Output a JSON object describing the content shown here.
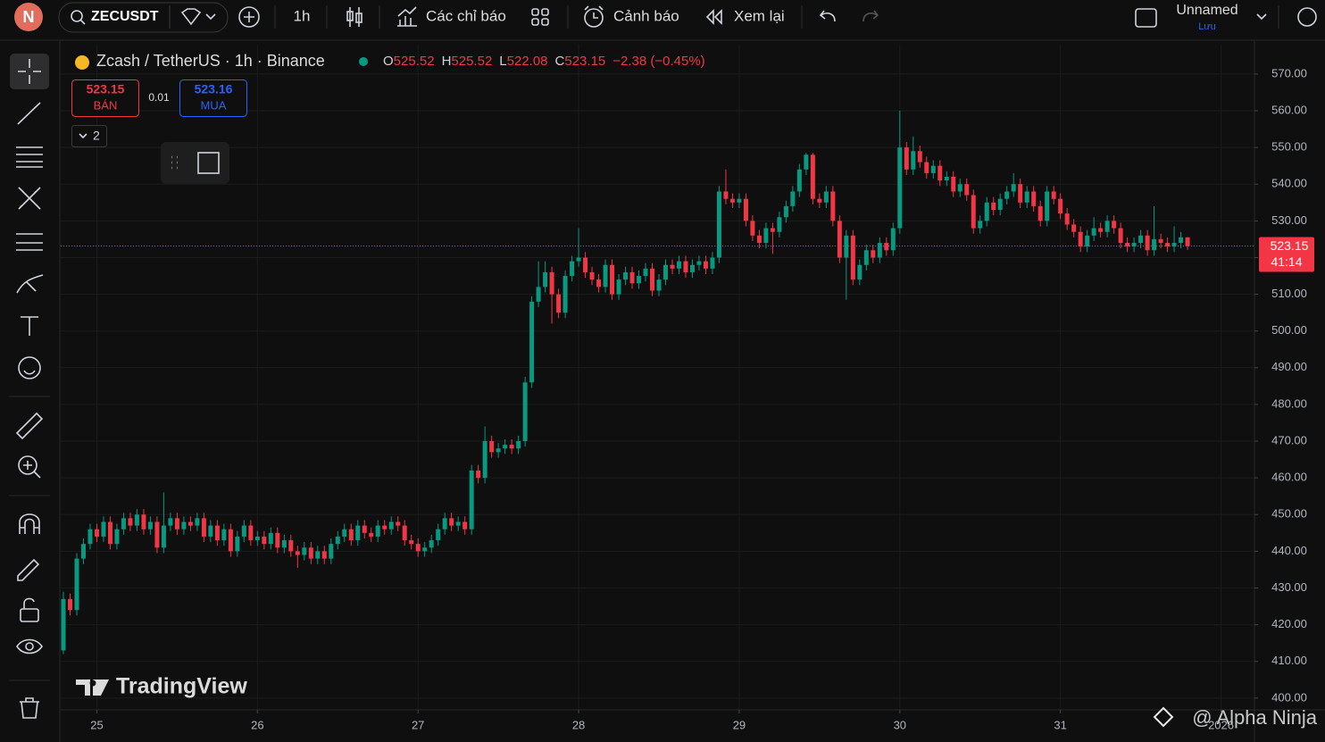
{
  "ui": {
    "avatar": "N",
    "symbol": "ZECUSDT",
    "interval": "1h",
    "indicators": "Các chỉ báo",
    "alerts": "Cảnh báo",
    "replay": "Xem lại",
    "layout_name": "Unnamed",
    "save": "Lưu",
    "sell_label": "BÁN",
    "spread": "0.01",
    "buy_price": "523.16",
    "buy_label": "MUA",
    "collapse_count": "2",
    "countdown": "41:14",
    "watermark": "TradingView",
    "credit": "@ Alpha Ninja"
  },
  "chart_data": {
    "type": "candlestick",
    "title": "Zcash / TetherUS · 1h · Binance",
    "change": "−2.38 (−0.45%)",
    "ohlc_labels": [
      "O",
      "H",
      "L",
      "C"
    ],
    "up_color": "#089981",
    "down_color": "#f23645",
    "grid": true,
    "ylim": [
      396.8,
      578
    ],
    "xlim": [
      -0.4,
      178
    ],
    "yticks": [
      {
        "value": 400,
        "label": "400.00"
      },
      {
        "value": 410,
        "label": "410.00"
      },
      {
        "value": 420,
        "label": "420.00"
      },
      {
        "value": 430,
        "label": "430.00"
      },
      {
        "value": 440,
        "label": "440.00"
      },
      {
        "value": 450,
        "label": "450.00"
      },
      {
        "value": 460,
        "label": "460.00"
      },
      {
        "value": 470,
        "label": "470.00"
      },
      {
        "value": 480,
        "label": "480.00"
      },
      {
        "value": 490,
        "label": "490.00"
      },
      {
        "value": 500,
        "label": "500.00"
      },
      {
        "value": 510,
        "label": "510.00"
      },
      {
        "value": 520,
        "label": "520.00"
      },
      {
        "value": 530,
        "label": "530.00"
      },
      {
        "value": 540,
        "label": "540.00"
      },
      {
        "value": 550,
        "label": "550.00"
      },
      {
        "value": 560,
        "label": "560.00"
      },
      {
        "value": 570,
        "label": "570.00"
      }
    ],
    "xticks": [
      {
        "value": 5,
        "label": "25"
      },
      {
        "value": 29,
        "label": "26"
      },
      {
        "value": 53,
        "label": "27"
      },
      {
        "value": 77,
        "label": "28"
      },
      {
        "value": 101,
        "label": "29"
      },
      {
        "value": 125,
        "label": "30"
      },
      {
        "value": 149,
        "label": "31"
      },
      {
        "value": 173,
        "label": "2026"
      }
    ],
    "ohlc": [
      [
        413,
        429,
        412,
        427
      ],
      [
        427,
        428.5,
        422.5,
        424
      ],
      [
        424,
        439.5,
        422.5,
        438
      ],
      [
        438,
        443.5,
        436.5,
        442
      ],
      [
        442,
        447.5,
        440.5,
        446
      ],
      [
        446,
        447.5,
        442.5,
        444
      ],
      [
        444,
        449.5,
        442.5,
        448
      ],
      [
        448,
        449.5,
        440.5,
        442
      ],
      [
        442,
        447.5,
        440.5,
        446
      ],
      [
        446,
        450.5,
        444.5,
        449
      ],
      [
        449,
        450.5,
        445.5,
        447
      ],
      [
        447,
        451.5,
        445.5,
        450
      ],
      [
        450,
        451.5,
        444.5,
        446
      ],
      [
        446,
        449.5,
        444.5,
        448
      ],
      [
        448,
        449.5,
        439.5,
        441
      ],
      [
        441,
        456,
        439.5,
        447
      ],
      [
        447,
        450.5,
        445.5,
        449
      ],
      [
        449,
        450.5,
        444.5,
        446
      ],
      [
        446,
        449.5,
        444.5,
        448
      ],
      [
        448,
        449.5,
        445.5,
        447
      ],
      [
        447,
        450.5,
        445.5,
        449
      ],
      [
        449,
        450.5,
        442.5,
        444
      ],
      [
        444,
        448.5,
        442.5,
        447
      ],
      [
        447,
        448.5,
        441.5,
        443
      ],
      [
        443,
        447.5,
        441.5,
        446
      ],
      [
        446,
        447.5,
        438.5,
        440
      ],
      [
        440,
        445.5,
        438.5,
        444
      ],
      [
        444,
        448.5,
        442.5,
        447
      ],
      [
        447,
        448.5,
        441.5,
        443
      ],
      [
        443,
        445.5,
        441.5,
        444
      ],
      [
        444,
        445.5,
        440.5,
        442
      ],
      [
        442,
        446.5,
        440.5,
        445
      ],
      [
        445,
        446.5,
        439.5,
        441
      ],
      [
        441,
        444.5,
        439.5,
        443
      ],
      [
        443,
        444.5,
        438.5,
        440
      ],
      [
        440,
        441.5,
        435.5,
        439
      ],
      [
        439,
        442.5,
        437.5,
        441
      ],
      [
        441,
        442.5,
        436.5,
        438
      ],
      [
        438,
        441.5,
        436.5,
        440
      ],
      [
        440,
        441.5,
        436.5,
        438
      ],
      [
        438,
        443.5,
        436.5,
        442
      ],
      [
        442,
        445.5,
        440.5,
        444
      ],
      [
        444,
        447.5,
        442.5,
        446
      ],
      [
        446,
        447.5,
        441.5,
        443
      ],
      [
        443,
        448.5,
        441.5,
        447
      ],
      [
        447,
        448.5,
        443.5,
        445
      ],
      [
        445,
        446.5,
        442.5,
        444
      ],
      [
        444,
        448.5,
        442.5,
        447
      ],
      [
        447,
        448.5,
        444.5,
        446
      ],
      [
        446,
        449.5,
        444.5,
        448
      ],
      [
        448,
        449.5,
        445.5,
        447
      ],
      [
        447,
        448.5,
        441.5,
        443
      ],
      [
        443,
        444.5,
        440.5,
        442
      ],
      [
        442,
        443.5,
        438.5,
        440
      ],
      [
        440,
        442.5,
        438.5,
        441
      ],
      [
        441,
        444.5,
        439.5,
        443
      ],
      [
        443,
        447.5,
        441.5,
        446
      ],
      [
        446,
        450.5,
        444.5,
        449
      ],
      [
        449,
        450.5,
        445.5,
        447
      ],
      [
        447,
        449.5,
        445.5,
        448
      ],
      [
        448,
        449.5,
        444.5,
        446
      ],
      [
        446,
        463.5,
        444.5,
        462
      ],
      [
        462,
        463.5,
        458.5,
        460
      ],
      [
        460,
        474,
        458.5,
        470
      ],
      [
        470,
        471.5,
        465.5,
        467
      ],
      [
        467,
        469.5,
        465.5,
        468
      ],
      [
        468,
        470.5,
        466.5,
        469
      ],
      [
        469,
        470.5,
        466.5,
        468
      ],
      [
        468,
        471.5,
        466.5,
        470
      ],
      [
        470,
        487.5,
        468.5,
        486
      ],
      [
        486,
        509.5,
        484.5,
        508
      ],
      [
        508,
        519,
        506.5,
        512
      ],
      [
        512,
        519,
        510.5,
        516
      ],
      [
        516,
        517.5,
        502,
        510
      ],
      [
        510,
        511.5,
        503.5,
        505
      ],
      [
        505,
        516.5,
        503.5,
        515
      ],
      [
        515,
        520.5,
        513.5,
        519
      ],
      [
        519,
        528,
        517.5,
        520
      ],
      [
        520,
        521.5,
        514.5,
        516
      ],
      [
        516,
        517.5,
        512.5,
        514
      ],
      [
        514,
        515.5,
        510.5,
        512
      ],
      [
        512,
        519.5,
        510.5,
        518
      ],
      [
        518,
        519.5,
        508.5,
        510
      ],
      [
        510,
        515.5,
        508.5,
        514
      ],
      [
        514,
        517.5,
        512.5,
        516
      ],
      [
        516,
        517.5,
        511.5,
        513
      ],
      [
        513,
        516.5,
        511.5,
        515
      ],
      [
        515,
        518.5,
        513.5,
        517
      ],
      [
        517,
        518.5,
        509.5,
        511
      ],
      [
        511,
        515.5,
        509.5,
        514
      ],
      [
        514,
        519.5,
        512.5,
        518
      ],
      [
        518,
        519.5,
        515.5,
        517
      ],
      [
        517,
        520.5,
        515.5,
        519
      ],
      [
        519,
        520.5,
        514.5,
        516
      ],
      [
        516,
        519.5,
        514.5,
        518
      ],
      [
        518,
        520.5,
        516.5,
        519
      ],
      [
        519,
        520.5,
        515.5,
        517
      ],
      [
        517,
        521.5,
        515.5,
        520
      ],
      [
        520,
        539.5,
        518.5,
        538
      ],
      [
        538,
        544,
        534.5,
        536
      ],
      [
        536,
        537.5,
        533.5,
        535
      ],
      [
        535,
        537.5,
        533.5,
        536
      ],
      [
        536,
        537.5,
        528.5,
        530
      ],
      [
        530,
        531.5,
        524.5,
        526
      ],
      [
        526,
        527.5,
        522.5,
        524
      ],
      [
        524,
        529.5,
        522.5,
        528
      ],
      [
        528,
        529.5,
        521,
        527
      ],
      [
        527,
        532.5,
        525.5,
        531
      ],
      [
        531,
        535.5,
        529.5,
        534
      ],
      [
        534,
        539.5,
        532.5,
        538
      ],
      [
        538,
        545.5,
        536.5,
        544
      ],
      [
        544,
        548.5,
        542.5,
        548
      ],
      [
        548,
        548.5,
        534.5,
        536
      ],
      [
        536,
        537.5,
        533.5,
        535
      ],
      [
        535,
        539.5,
        533.5,
        538
      ],
      [
        538,
        539.5,
        528.5,
        530
      ],
      [
        530,
        531.5,
        518.5,
        520
      ],
      [
        520,
        527.5,
        508.5,
        526
      ],
      [
        526,
        527.5,
        512.5,
        514
      ],
      [
        514,
        519.5,
        512.5,
        518
      ],
      [
        518,
        523.5,
        516.5,
        522
      ],
      [
        522,
        523.5,
        518.5,
        520
      ],
      [
        520,
        525.5,
        518.5,
        524
      ],
      [
        524,
        525.5,
        520.5,
        522
      ],
      [
        522,
        529.5,
        520.5,
        528
      ],
      [
        528,
        560,
        526.5,
        550
      ],
      [
        550,
        551.5,
        542.5,
        544
      ],
      [
        544,
        553,
        542.5,
        549
      ],
      [
        549,
        550.5,
        544.5,
        546
      ],
      [
        546,
        547.5,
        541.5,
        543
      ],
      [
        543,
        546.5,
        541.5,
        545
      ],
      [
        545,
        546.5,
        539.5,
        541
      ],
      [
        541,
        543.5,
        539.5,
        542
      ],
      [
        542,
        543.5,
        536.5,
        538
      ],
      [
        538,
        541.5,
        536.5,
        540
      ],
      [
        540,
        541.5,
        535.5,
        537
      ],
      [
        537,
        538.5,
        526.5,
        528
      ],
      [
        528,
        531.5,
        526.5,
        530
      ],
      [
        530,
        536.5,
        528.5,
        535
      ],
      [
        535,
        536.5,
        531.5,
        533
      ],
      [
        533,
        537.5,
        531.5,
        536
      ],
      [
        536,
        539.5,
        534.5,
        538
      ],
      [
        538,
        543,
        536.5,
        540
      ],
      [
        540,
        541.5,
        533.5,
        535
      ],
      [
        535,
        539.5,
        533.5,
        538
      ],
      [
        538,
        539.5,
        532.5,
        534
      ],
      [
        534,
        535.5,
        528.5,
        530
      ],
      [
        530,
        539.5,
        528.5,
        538
      ],
      [
        538,
        539.5,
        534.5,
        536
      ],
      [
        536,
        537.5,
        530.5,
        532
      ],
      [
        532,
        533.5,
        527.5,
        529
      ],
      [
        529,
        530.5,
        525.5,
        527
      ],
      [
        527,
        528.5,
        521.5,
        523
      ],
      [
        523,
        527.5,
        521.5,
        526
      ],
      [
        526,
        531,
        524.5,
        528
      ],
      [
        528,
        529.5,
        525.5,
        527
      ],
      [
        527,
        531.5,
        525.5,
        530
      ],
      [
        530,
        531.5,
        526.5,
        528
      ],
      [
        528,
        529.5,
        522.5,
        524
      ],
      [
        524,
        525.5,
        521.5,
        523
      ],
      [
        523,
        525.5,
        521.5,
        524
      ],
      [
        524,
        527.5,
        522.5,
        526
      ],
      [
        526,
        527.5,
        520.5,
        522
      ],
      [
        522,
        534,
        520.5,
        525
      ],
      [
        525,
        526.5,
        522.5,
        524
      ],
      [
        524,
        525.5,
        521.5,
        523
      ],
      [
        523,
        528.5,
        521.5,
        524
      ],
      [
        524,
        527,
        522.5,
        525.52
      ],
      [
        525.52,
        525.52,
        522.08,
        523.15
      ]
    ]
  }
}
